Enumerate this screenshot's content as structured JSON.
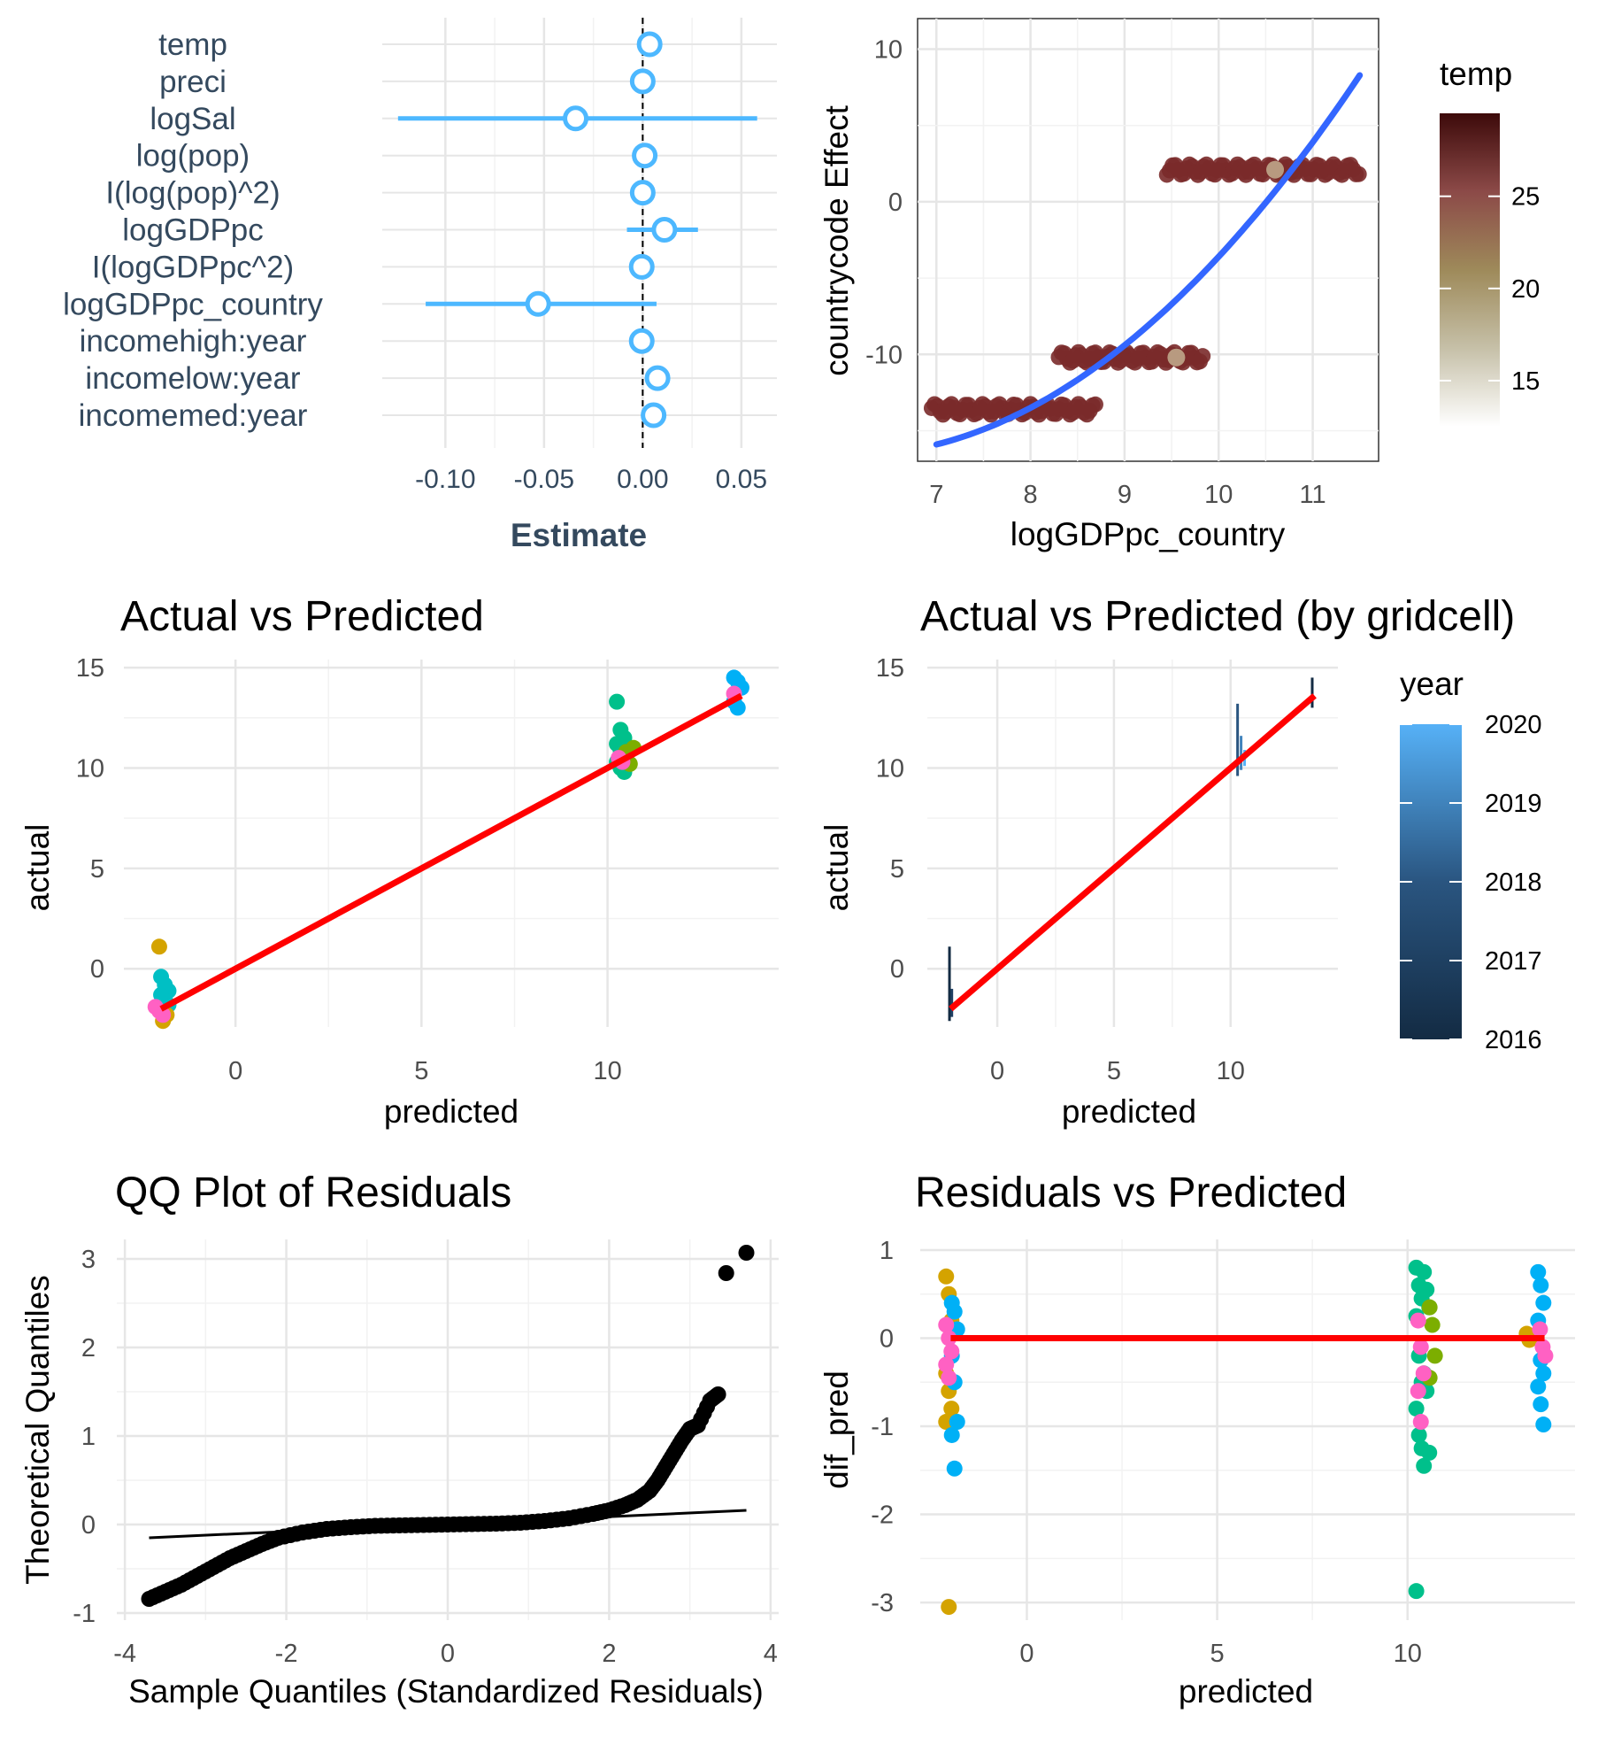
{
  "chart_data": [
    {
      "id": "coef",
      "type": "scatter",
      "subtype": "coefficient-plot",
      "title": "",
      "xlabel": "Estimate",
      "ylabel": "",
      "xlim": [
        -0.132,
        0.068
      ],
      "xticks": [
        -0.1,
        -0.05,
        0.0,
        0.05
      ],
      "xtick_labels": [
        "-0.10",
        "-0.05",
        "0.00",
        "0.05"
      ],
      "reference_line": 0,
      "color": "#4db8ff",
      "terms": [
        "temp",
        "preci",
        "logSal",
        "log(pop)",
        "I(log(pop)^2)",
        "logGDPpc",
        "I(logGDPpc^2)",
        "logGDPpc_country",
        "incomehigh:year",
        "incomelow:year",
        "incomemed:year"
      ],
      "estimates": [
        0.0035,
        0.0,
        -0.034,
        0.001,
        0.0,
        0.011,
        -0.0005,
        -0.053,
        -0.0005,
        0.0075,
        0.0055
      ],
      "ci_low": [
        0.0025,
        -0.0005,
        -0.124,
        0.0,
        -0.0005,
        -0.008,
        -0.001,
        -0.11,
        -0.001,
        0.0065,
        0.0045
      ],
      "ci_high": [
        0.0045,
        0.0005,
        0.058,
        0.002,
        0.0005,
        0.028,
        0.0,
        0.007,
        0.0,
        0.0085,
        0.0065
      ],
      "grid": true
    },
    {
      "id": "country-effect",
      "type": "scatter",
      "title": "",
      "xlabel": "logGDPpc_country",
      "ylabel": "countrycode Effect",
      "xlim": [
        6.8,
        11.7
      ],
      "ylim": [
        -17,
        12
      ],
      "xticks": [
        7,
        8,
        9,
        10,
        11
      ],
      "xtick_labels": [
        "7",
        "8",
        "9",
        "10",
        "11"
      ],
      "yticks": [
        -10,
        0,
        10
      ],
      "ytick_labels": [
        "-10",
        "0",
        "10"
      ],
      "legend": {
        "title": "temp",
        "position": "right",
        "type": "gradient",
        "range": [
          12.5,
          29.5
        ],
        "ticks": [
          15,
          20,
          25
        ],
        "tick_labels": [
          "15",
          "20",
          "25"
        ],
        "colors": [
          "#ffffff",
          "#c6c0a8",
          "#9e8a5a",
          "#8c4a48",
          "#3d0a0a"
        ]
      },
      "clusters": [
        {
          "y": 2.1,
          "x_min": 9.45,
          "x_max": 11.5,
          "light_x": [
            10.6
          ]
        },
        {
          "y": -10.2,
          "x_min": 8.3,
          "x_max": 9.85,
          "light_x": [
            9.55
          ]
        },
        {
          "y": -13.6,
          "x_min": 6.95,
          "x_max": 8.7,
          "light_x": []
        }
      ],
      "point_color": "#7a2a2a",
      "point_color_light": "#b89a80",
      "fit": {
        "type": "quadratic",
        "x": [
          7.0,
          8.0,
          9.0,
          10.0,
          11.0,
          11.5
        ],
        "y": [
          -15.9,
          -13.5,
          -9.7,
          -4.0,
          4.6,
          10.0
        ],
        "color": "#3366ff"
      },
      "grid": true
    },
    {
      "id": "actual-vs-predicted",
      "type": "scatter",
      "title": "Actual vs Predicted",
      "xlabel": "predicted",
      "ylabel": "actual",
      "xlim": [
        -3.0,
        14.6
      ],
      "ylim": [
        -2.9,
        15.4
      ],
      "xticks": [
        0,
        5,
        10
      ],
      "xtick_labels": [
        "0",
        "5",
        "10"
      ],
      "yticks": [
        0,
        5,
        10,
        15
      ],
      "ytick_labels": [
        "0",
        "5",
        "10",
        "15"
      ],
      "groups": [
        {
          "color": "#00bfc4",
          "x": -1.9,
          "y": [
            -0.4,
            -0.8,
            -1.1,
            -1.3,
            -1.6,
            -1.8,
            -2.0,
            -2.2
          ]
        },
        {
          "color": "#d4a300",
          "x": -1.95,
          "y": [
            1.1,
            -2.6,
            -2.3
          ]
        },
        {
          "color": "#00c08b",
          "x": 10.35,
          "y": [
            13.3,
            11.9,
            11.5,
            11.2,
            10.9,
            10.6,
            10.3,
            10.0,
            9.8
          ]
        },
        {
          "color": "#7cae00",
          "x": 10.6,
          "y": [
            10.5,
            10.2,
            11.0,
            10.8
          ]
        },
        {
          "color": "#00b0f6",
          "x": 13.5,
          "y": [
            14.5,
            14.3,
            14.0,
            13.3,
            13.0
          ]
        },
        {
          "color": "#ff61c3",
          "x": -2.05,
          "y": [
            -1.9,
            -2.1,
            -2.3
          ]
        },
        {
          "color": "#ff61c3",
          "x": 10.4,
          "y": [
            10.5,
            10.3
          ]
        },
        {
          "color": "#ff61c3",
          "x": 13.5,
          "y": [
            13.7
          ]
        }
      ],
      "fit_line": {
        "x": [
          -2.0,
          13.6
        ],
        "y": [
          -2.0,
          13.6
        ],
        "color": "#ff0000"
      },
      "grid": true
    },
    {
      "id": "actual-vs-predicted-gridcell",
      "type": "line",
      "title": "Actual vs Predicted (by gridcell)",
      "xlabel": "predicted",
      "ylabel": "actual",
      "xlim": [
        -3.0,
        14.6
      ],
      "ylim": [
        -2.9,
        15.4
      ],
      "xticks": [
        0,
        5,
        10
      ],
      "xtick_labels": [
        "0",
        "5",
        "10"
      ],
      "yticks": [
        0,
        5,
        10,
        15
      ],
      "ytick_labels": [
        "0",
        "5",
        "10",
        "15"
      ],
      "legend": {
        "title": "year",
        "position": "right",
        "type": "gradient",
        "range": [
          2016,
          2020
        ],
        "ticks": [
          2016,
          2017,
          2018,
          2019,
          2020
        ],
        "tick_labels": [
          "2016",
          "2017",
          "2018",
          "2019",
          "2020"
        ],
        "colors": [
          "#132b43",
          "#2a5580",
          "#56b1f7"
        ]
      },
      "segments": [
        {
          "x": -2.05,
          "y_min": -2.6,
          "y_max": 1.1
        },
        {
          "x": -1.95,
          "y_min": -2.4,
          "y_max": -1.0
        },
        {
          "x": 10.3,
          "y_min": 9.6,
          "y_max": 13.2
        },
        {
          "x": 10.45,
          "y_min": 9.9,
          "y_max": 11.6
        },
        {
          "x": 10.6,
          "y_min": 10.1,
          "y_max": 10.9
        },
        {
          "x": 13.5,
          "y_min": 13.0,
          "y_max": 14.5
        }
      ],
      "fit_line": {
        "x": [
          -2.0,
          13.6
        ],
        "y": [
          -2.0,
          13.6
        ],
        "color": "#ff0000"
      },
      "grid": true
    },
    {
      "id": "qq-plot",
      "type": "scatter",
      "title": "QQ Plot of Residuals",
      "xlabel": "Sample Quantiles (Standardized Residuals)",
      "ylabel": "Theoretical Quantiles",
      "xlim": [
        -4.1,
        4.1
      ],
      "ylim": [
        -1.08,
        3.22
      ],
      "xticks": [
        -4,
        -2,
        0,
        2,
        4
      ],
      "xtick_labels": [
        "-4",
        "-2",
        "0",
        "2",
        "4"
      ],
      "yticks": [
        -1,
        0,
        1,
        2,
        3
      ],
      "ytick_labels": [
        "-1",
        "0",
        "1",
        "2",
        "3"
      ],
      "points": {
        "x": [
          -3.7,
          -3.5,
          -3.3,
          -3.1,
          -2.9,
          -2.7,
          -2.5,
          -2.3,
          -2.1,
          -1.8,
          -1.5,
          -1.2,
          -0.9,
          -0.6,
          -0.3,
          0.0,
          0.3,
          0.6,
          0.9,
          1.2,
          1.5,
          1.8,
          2.0,
          2.2,
          2.35,
          2.5,
          2.6,
          2.7,
          2.8,
          2.9,
          3.0,
          3.1,
          3.25,
          3.35,
          3.45,
          3.7
        ],
        "y": [
          -0.84,
          -0.76,
          -0.68,
          -0.58,
          -0.48,
          -0.38,
          -0.3,
          -0.22,
          -0.15,
          -0.09,
          -0.05,
          -0.03,
          -0.015,
          -0.01,
          -0.005,
          0.0,
          0.005,
          0.01,
          0.02,
          0.04,
          0.07,
          0.12,
          0.16,
          0.22,
          0.28,
          0.38,
          0.5,
          0.65,
          0.8,
          0.95,
          1.08,
          1.12,
          1.4,
          1.47,
          2.84,
          3.07
        ]
      },
      "reference_line": {
        "x": [
          -3.7,
          3.7
        ],
        "y": [
          -0.15,
          0.16
        ]
      },
      "color": "#000000",
      "grid": true
    },
    {
      "id": "residuals-vs-predicted",
      "type": "scatter",
      "title": "Residuals vs  Predicted",
      "xlabel": "predicted",
      "ylabel": "dif_pred",
      "xlim": [
        -2.8,
        14.4
      ],
      "ylim": [
        -3.2,
        1.12
      ],
      "xticks": [
        0,
        5,
        10
      ],
      "xtick_labels": [
        "0",
        "5",
        "10"
      ],
      "yticks": [
        -3,
        -2,
        -1,
        0,
        1
      ],
      "ytick_labels": [
        "-3",
        "-2",
        "-1",
        "0",
        "1"
      ],
      "groups": [
        {
          "color": "#d4a300",
          "x": -2.05,
          "y": [
            0.7,
            0.5,
            0.2,
            -0.4,
            -0.6,
            -0.8,
            -0.95,
            -3.05
          ]
        },
        {
          "color": "#00b0f6",
          "x": -1.9,
          "y": [
            0.4,
            0.3,
            0.1,
            -0.2,
            -0.5,
            -0.95,
            -1.1,
            -1.48
          ]
        },
        {
          "color": "#00c08b",
          "x": 10.3,
          "y": [
            0.8,
            0.6,
            0.45,
            0.25,
            -0.2,
            -0.5,
            -0.8,
            -1.1,
            -1.25,
            -2.87
          ]
        },
        {
          "color": "#00c08b",
          "x": 10.5,
          "y": [
            0.75,
            0.55,
            0.35,
            -0.4,
            -0.6,
            -1.3,
            -1.45
          ]
        },
        {
          "color": "#7cae00",
          "x": 10.65,
          "y": [
            0.35,
            0.15,
            -0.2,
            -0.45
          ]
        },
        {
          "color": "#00b0f6",
          "x": 13.5,
          "y": [
            0.75,
            0.6,
            0.4,
            0.2,
            -0.25,
            -0.4,
            -0.55,
            -0.75,
            -0.98
          ]
        },
        {
          "color": "#d4a300",
          "x": 13.2,
          "y": [
            0.05,
            -0.02
          ]
        },
        {
          "color": "#ff61c3",
          "x": -2.05,
          "y": [
            0.15,
            0.0,
            -0.15,
            -0.3,
            -0.45
          ]
        },
        {
          "color": "#ff61c3",
          "x": 10.35,
          "y": [
            0.2,
            -0.1,
            -0.4,
            -0.6,
            -0.95
          ]
        },
        {
          "color": "#ff61c3",
          "x": 13.55,
          "y": [
            0.1,
            -0.1,
            -0.2
          ]
        }
      ],
      "fit_line": {
        "x": [
          -2.0,
          13.6
        ],
        "y": [
          0.0,
          0.0
        ],
        "color": "#ff0000"
      },
      "grid": true
    }
  ]
}
